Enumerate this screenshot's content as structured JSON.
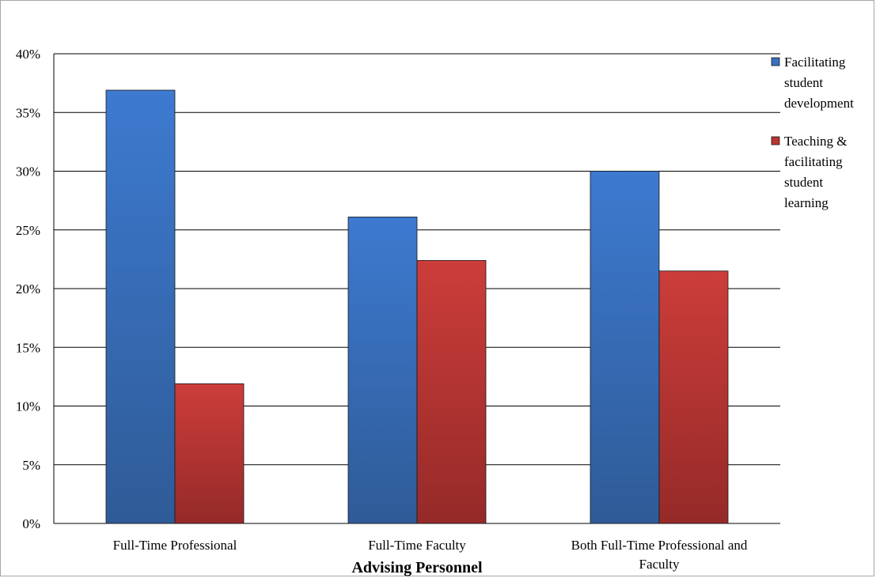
{
  "chart_data": {
    "type": "bar",
    "categories": [
      [
        "Full-Time Professional"
      ],
      [
        "Full-Time Faculty"
      ],
      [
        "Both Full-Time Professional and",
        "Faculty"
      ]
    ],
    "series": [
      {
        "name": [
          "Facilitating",
          "student",
          "development"
        ],
        "color": "#3a70c0",
        "values": [
          36.9,
          26.1,
          30.0
        ]
      },
      {
        "name": [
          "Teaching &",
          "facilitating",
          "student",
          "learning"
        ],
        "color": "#bb3431",
        "values": [
          11.9,
          22.4,
          21.5
        ]
      }
    ],
    "xlabel": "Advising  Personnel",
    "ylabel": "",
    "ylim": [
      0,
      40
    ],
    "yticks": [
      "0%",
      "5%",
      "10%",
      "15%",
      "20%",
      "25%",
      "30%",
      "35%",
      "40%"
    ],
    "grid": true,
    "legend_position": "right"
  }
}
